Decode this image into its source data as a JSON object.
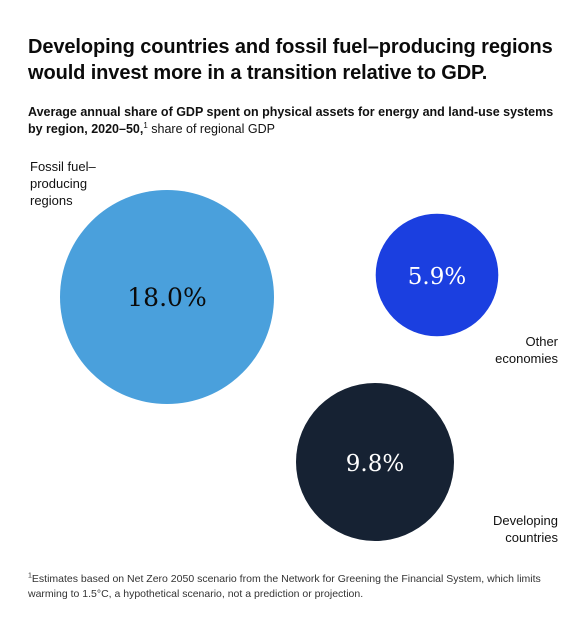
{
  "headline": "Developing countries and fossil fuel–producing regions would invest more in a transition relative to GDP.",
  "subtitle": {
    "bold": "Average annual share of GDP spent on physical assets for energy and land-use systems by region, 2020–50,",
    "marker": "1",
    "rest": " share of regional GDP"
  },
  "chart_data": {
    "type": "bubble",
    "unit": "% of regional GDP",
    "series": [
      {
        "name": "Fossil fuel–producing regions",
        "label_lines": [
          "Fossil fuel–",
          "producing",
          "regions"
        ],
        "value": 18.0,
        "display": "18.0%",
        "color": "#4aa0dc",
        "text_color": "#0b0b0b"
      },
      {
        "name": "Other economies",
        "label_lines": [
          "Other",
          "economies"
        ],
        "value": 5.9,
        "display": "5.9%",
        "color": "#1b3fe0",
        "text_color": "#ffffff"
      },
      {
        "name": "Developing countries",
        "label_lines": [
          "Developing",
          "countries"
        ],
        "value": 9.8,
        "display": "9.8%",
        "color": "#162233",
        "text_color": "#ffffff"
      }
    ]
  },
  "footnote": {
    "marker": "1",
    "text": "Estimates based on Net Zero 2050 scenario from the Network for Greening the Financial System, which limits warming to 1.5°C, a hypothetical scenario, not a prediction or projection."
  }
}
